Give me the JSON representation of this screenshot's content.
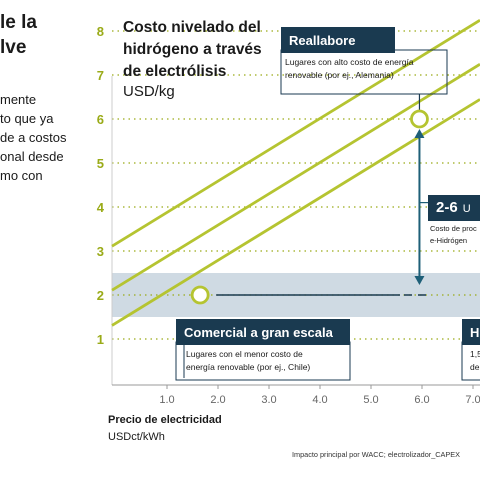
{
  "left_panel": {
    "heading_lines": [
      "le la",
      "lve"
    ],
    "body_lines": [
      "mente",
      "to que ya",
      "de a costos",
      "onal desde",
      "mo con"
    ]
  },
  "chart_title_lines": [
    "Costo nivelado del",
    "hidrógeno a través",
    "de electrólisis"
  ],
  "chart_unit": "USD/kg",
  "x_axis_title": "Precio de electricidad",
  "x_axis_unit": "USDct/kWh",
  "footnote": "Impacto principal por WACC; electrolizador_CAPEX",
  "boxes": {
    "reallabore": {
      "label": "Reallabore",
      "desc_lines": [
        "Lugares con alto costo de energía",
        "renovable (por ej., Alemania)"
      ]
    },
    "comercial": {
      "label": "Comercial a gran escala",
      "desc_lines": [
        "Lugares con el menor costo de",
        "energía renovable (por ej., Chile)"
      ]
    },
    "right_box": {
      "label": "H",
      "desc_lines": [
        "1,5",
        "de"
      ]
    }
  },
  "range_badge": {
    "value": "2-6",
    "unit": "U",
    "desc_lines": [
      "Costo de proc",
      "e-Hidrógen"
    ]
  },
  "colors": {
    "line": "#b5c431",
    "dark_navy": "#1a3a50",
    "teal_arrow": "#1e5f78",
    "band": "#cfdae3",
    "tick_green": "#9aab18",
    "gridline": "#9aab18"
  },
  "chart_data": {
    "type": "line",
    "xlabel": "Precio de electricidad USDct/kWh",
    "ylabel": "USD/kg",
    "xlim": [
      0.0,
      7.0
    ],
    "ylim": [
      1,
      8
    ],
    "x_ticks": [
      "1.0",
      "2.0",
      "3.0",
      "4.0",
      "5.0",
      "6.0",
      "7.0"
    ],
    "y_ticks": [
      "1",
      "2",
      "3",
      "4",
      "5",
      "6",
      "7",
      "8"
    ],
    "series": [
      {
        "x": [
          0.0,
          7.0
        ],
        "y": [
          3.0,
          8.1
        ]
      },
      {
        "x": [
          0.0,
          7.0
        ],
        "y": [
          2.0,
          7.1
        ]
      },
      {
        "x": [
          0.0,
          7.0
        ],
        "y": [
          1.2,
          6.3
        ]
      }
    ],
    "band": {
      "y_range": [
        1.5,
        2.5
      ]
    },
    "markers": [
      {
        "x": 1.65,
        "y": 2.0
      },
      {
        "x": 5.95,
        "y": 6.0
      }
    ],
    "range_arrow": {
      "x": 5.95,
      "y_range": [
        2.0,
        6.0
      ]
    },
    "grid": "horizontal dotted"
  }
}
